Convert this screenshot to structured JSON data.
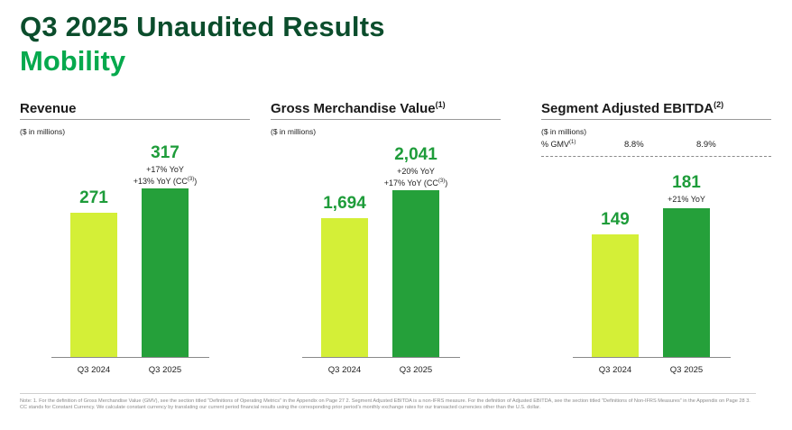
{
  "header": {
    "title": "Q3 2025 Unaudited Results",
    "subtitle": "Mobility"
  },
  "colors": {
    "title": "#0b4d2c",
    "subtitle": "#06a94d",
    "bar_prev": "#d4ef37",
    "bar_curr": "#25a03a",
    "value_text": "#1e9c3a"
  },
  "chart_data": [
    {
      "type": "bar",
      "title": "Revenue",
      "title_sup": "",
      "unit": "($ in millions)",
      "categories": [
        "Q3 2024",
        "Q3 2025"
      ],
      "values": [
        271,
        317
      ],
      "value_labels": [
        "271",
        "317"
      ],
      "yoy_lines": [
        {
          "text": "+17% YoY",
          "sup": "",
          "tail": ""
        },
        {
          "text": "+13% YoY (CC",
          "sup": "(3)",
          "tail": ")"
        }
      ]
    },
    {
      "type": "bar",
      "title": "Gross Merchandise Value",
      "title_sup": "(1)",
      "unit": "($ in millions)",
      "categories": [
        "Q3 2024",
        "Q3 2025"
      ],
      "values": [
        1694,
        2041
      ],
      "value_labels": [
        "1,694",
        "2,041"
      ],
      "yoy_lines": [
        {
          "text": "+20% YoY",
          "sup": "",
          "tail": ""
        },
        {
          "text": "+17% YoY (CC",
          "sup": "(3)",
          "tail": ")"
        }
      ]
    },
    {
      "type": "bar",
      "title": "Segment Adjusted EBITDA",
      "title_sup": "(2)",
      "unit": "($ in millions)",
      "pct_gmv_label": "% GMV",
      "pct_gmv_sup": "(1)",
      "pct_gmv": [
        "8.8%",
        "8.9%"
      ],
      "categories": [
        "Q3 2024",
        "Q3 2025"
      ],
      "values": [
        149,
        181
      ],
      "value_labels": [
        "149",
        "181"
      ],
      "yoy_lines": [
        {
          "text": "+21% YoY",
          "sup": "",
          "tail": ""
        }
      ]
    }
  ],
  "footnote": "Note: 1. For the definition of Gross Merchandise Value (GMV), see the section titled “Definitions of Operating Metrics” in the Appendix on Page 27 2. Segment Adjusted EBITDA is a non-IFRS measure. For the definition of Adjusted EBITDA, see the section titled “Definitions of Non-IFRS Measures” in the Appendix on Page 28 3. CC stands for Constant Currency. We calculate constant currency by translating our current period financial results using the corresponding prior period’s monthly exchange rates for our transacted currencies other than the U.S. dollar."
}
